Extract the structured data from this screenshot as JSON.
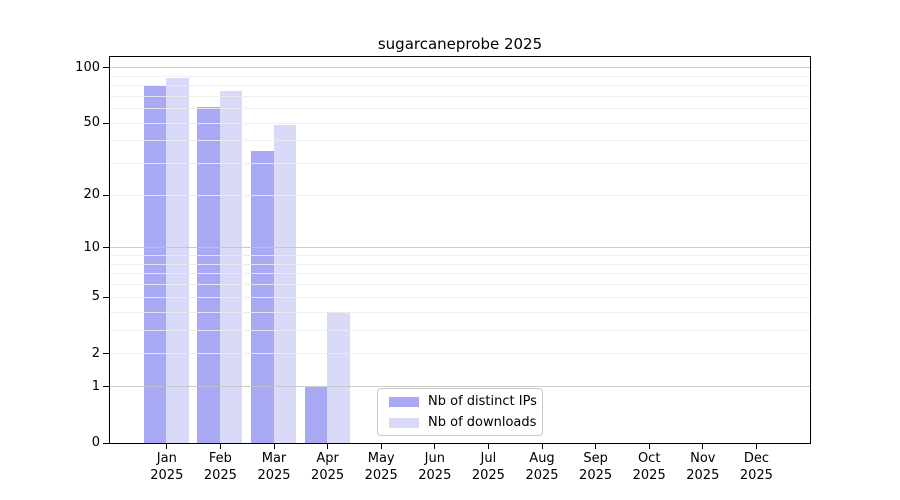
{
  "chart_data": {
    "type": "bar",
    "title": "sugarcaneprobe 2025",
    "categories": [
      "Jan",
      "Feb",
      "Mar",
      "Apr",
      "May",
      "Jun",
      "Jul",
      "Aug",
      "Sep",
      "Oct",
      "Nov",
      "Dec"
    ],
    "x_tick_year": "2025",
    "series": [
      {
        "name": "Nb of distinct IPs",
        "color": "#a8a8f3",
        "values": [
          80,
          61,
          35,
          1,
          0,
          0,
          0,
          0,
          0,
          0,
          0,
          0
        ]
      },
      {
        "name": "Nb of downloads",
        "color": "#d9d9f8",
        "values": [
          88,
          75,
          49,
          4,
          0,
          0,
          0,
          0,
          0,
          0,
          0,
          0
        ]
      }
    ],
    "xlabel": "",
    "ylabel": "",
    "yscale": "log1p",
    "ylim": [
      0,
      114
    ],
    "ytick_values": [
      0,
      1,
      2,
      5,
      10,
      20,
      50,
      100
    ],
    "ytick_labels": [
      "0",
      "1",
      "2",
      "5",
      "10",
      "20",
      "50",
      "100"
    ],
    "grid": {
      "major_values": [
        1,
        10,
        100
      ],
      "minor_values": [
        2,
        3,
        4,
        5,
        6,
        7,
        8,
        9,
        20,
        30,
        40,
        50,
        60,
        70,
        80,
        90
      ],
      "major_color": "#c3c3c3",
      "minor_color": "#ededed"
    },
    "legend": {
      "position": "lower center",
      "items": [
        "Nb of distinct IPs",
        "Nb of downloads"
      ]
    }
  }
}
